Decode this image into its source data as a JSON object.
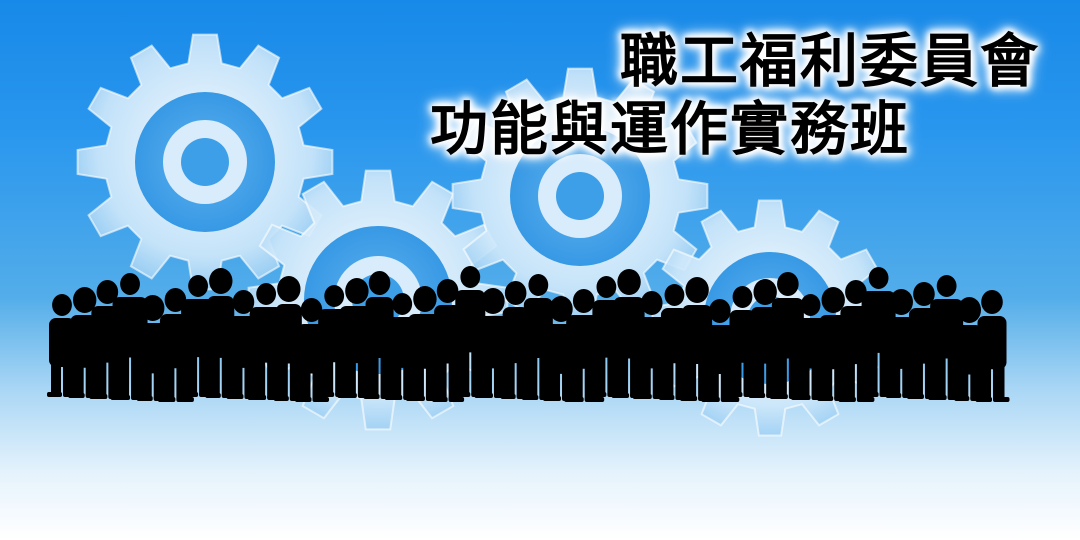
{
  "banner": {
    "title_line_1": "職工福利委員會",
    "title_line_2": "功能與運作實務班"
  },
  "colors": {
    "sky_top": "#1789e8",
    "sky_bottom": "#ffffff",
    "gear_fill": "#cfe8fa",
    "silhouette": "#000000"
  }
}
